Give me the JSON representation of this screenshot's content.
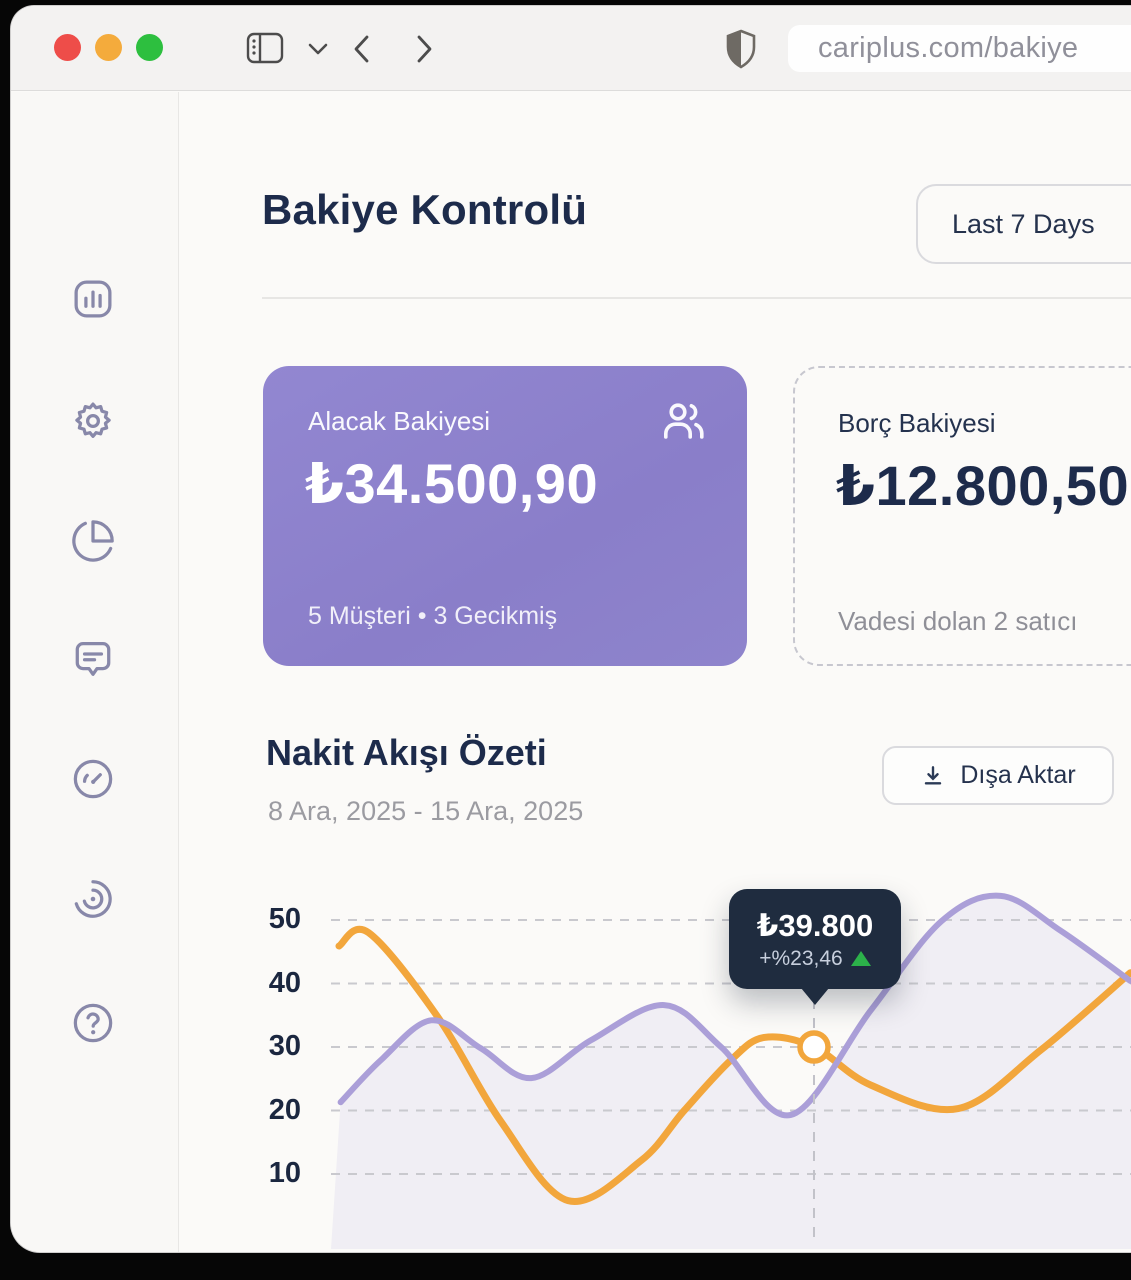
{
  "browser": {
    "url": "cariplus.com/bakiye",
    "traffic_lights": [
      "#ee4d49",
      "#f4ab3c",
      "#2dbf3f"
    ]
  },
  "header": {
    "title": "Bakiye Kontrolü",
    "range_button_label": "Last 7 Days"
  },
  "cards": {
    "receivable": {
      "label": "Alacak Bakiyesi",
      "amount": "₺34.500,90",
      "meta": "5 Müşteri • 3 Gecikmiş",
      "background": "#8d82cc",
      "icon": "users-icon"
    },
    "debt": {
      "label": "Borç Bakiyesi",
      "amount": "₺12.800,50",
      "meta": "Vadesi dolan 2 satıcı"
    }
  },
  "cashflow": {
    "title": "Nakit Akışı Özeti",
    "date_range": "8 Ara, 2025 - 15 Ara, 2025",
    "export_label": "Dışa Aktar",
    "export_icon": "download-icon"
  },
  "tooltip": {
    "value": "₺39.800",
    "change": "+%23,46",
    "direction": "up",
    "up_color": "#2cb24a",
    "background": "#1f2c3f"
  },
  "sidebar": {
    "items": [
      {
        "name": "analytics",
        "icon": "bar-chart-icon"
      },
      {
        "name": "settings",
        "icon": "gear-icon"
      },
      {
        "name": "reports",
        "icon": "pie-chart-icon"
      },
      {
        "name": "messages",
        "icon": "chat-icon"
      },
      {
        "name": "performance",
        "icon": "gauge-icon"
      },
      {
        "name": "records",
        "icon": "spiral-icon"
      },
      {
        "name": "help",
        "icon": "help-icon"
      }
    ]
  },
  "chart_data": {
    "type": "line",
    "title": "Nakit Akışı Özeti",
    "xlabel": "",
    "ylabel": "",
    "yticks": [
      10,
      20,
      30,
      40,
      50
    ],
    "ylim": [
      0,
      56
    ],
    "grid": true,
    "legend": false,
    "x_unit": "percent_of_plot_width",
    "series": [
      {
        "name": "nakit-girisi",
        "color": "#f2a63c",
        "x": [
          1.0,
          4.7,
          13.4,
          21.2,
          29.6,
          38.7,
          44.1,
          49.9,
          54.1,
          60.3,
          67.4,
          78.3,
          88.6,
          99.8
        ],
        "values": [
          45.9,
          48.0,
          34.6,
          18.3,
          5.8,
          12.1,
          20.0,
          27.9,
          31.5,
          30.0,
          24.0,
          20.3,
          29.5,
          41.7
        ]
      },
      {
        "name": "nakit-cikisi",
        "color": "#ab9fd8",
        "area_fill": "rgba(171,161,216,0.13)",
        "x": [
          1.2,
          6.2,
          12.5,
          18.7,
          25.0,
          32.5,
          41.6,
          48.7,
          57.4,
          67.4,
          76.2,
          83.6,
          91.1,
          99.8
        ],
        "values": [
          21.3,
          27.9,
          34.2,
          29.8,
          25.1,
          31.1,
          36.6,
          30.0,
          19.3,
          35.8,
          49.8,
          53.8,
          48.3,
          40.4
        ]
      }
    ],
    "highlight": {
      "series": "nakit-girisi",
      "x": 60.3,
      "value": 30.0,
      "label": "₺39.800",
      "change": "+%23,46"
    }
  }
}
